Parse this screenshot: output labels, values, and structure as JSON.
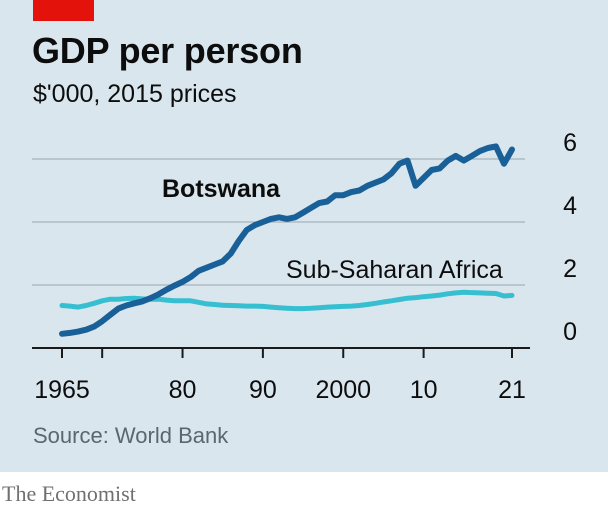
{
  "header": {
    "title": "GDP per person",
    "subtitle": "$'000, 2015 prices"
  },
  "footer": {
    "source": "Source: World Bank",
    "brand": "The Economist"
  },
  "colors": {
    "panel": "#d9e6ee",
    "tag": "#e3120b",
    "botswana": "#1a6098",
    "ssa": "#36bfd1",
    "grid": "#a9b4bb"
  },
  "chart_data": {
    "type": "line",
    "title": "GDP per person",
    "subtitle": "$'000, 2015 prices",
    "xlim": [
      1965,
      2021
    ],
    "ylim": [
      0,
      6
    ],
    "x_ticks": [
      1965,
      1970,
      1980,
      1990,
      2000,
      2010,
      2021
    ],
    "x_tick_labels": [
      "1965",
      "",
      "80",
      "90",
      "2000",
      "10",
      "21"
    ],
    "y_ticks": [
      0,
      2,
      4,
      6
    ],
    "y_tick_labels": [
      "0",
      "2",
      "4",
      "6"
    ],
    "grid": "horizontal",
    "x": [
      1965,
      1966,
      1967,
      1968,
      1969,
      1970,
      1971,
      1972,
      1973,
      1974,
      1975,
      1976,
      1977,
      1978,
      1979,
      1980,
      1981,
      1982,
      1983,
      1984,
      1985,
      1986,
      1987,
      1988,
      1989,
      1990,
      1991,
      1992,
      1993,
      1994,
      1995,
      1996,
      1997,
      1998,
      1999,
      2000,
      2001,
      2002,
      2003,
      2004,
      2005,
      2006,
      2007,
      2008,
      2009,
      2010,
      2011,
      2012,
      2013,
      2014,
      2015,
      2016,
      2017,
      2018,
      2019,
      2020,
      2021
    ],
    "series": [
      {
        "name": "Botswana",
        "values": [
          0.45,
          0.48,
          0.52,
          0.58,
          0.68,
          0.85,
          1.05,
          1.25,
          1.35,
          1.42,
          1.48,
          1.58,
          1.7,
          1.85,
          1.98,
          2.1,
          2.25,
          2.45,
          2.55,
          2.65,
          2.75,
          3.0,
          3.4,
          3.75,
          3.9,
          4.0,
          4.1,
          4.15,
          4.1,
          4.15,
          4.3,
          4.45,
          4.6,
          4.65,
          4.85,
          4.85,
          4.95,
          5.0,
          5.15,
          5.25,
          5.35,
          5.55,
          5.85,
          5.95,
          5.15,
          5.4,
          5.65,
          5.7,
          5.95,
          6.1,
          5.95,
          6.1,
          6.25,
          6.35,
          6.4,
          5.85,
          6.3
        ]
      },
      {
        "name": "Sub-Saharan Africa",
        "values": [
          1.35,
          1.33,
          1.3,
          1.35,
          1.42,
          1.5,
          1.55,
          1.55,
          1.57,
          1.58,
          1.56,
          1.55,
          1.55,
          1.52,
          1.5,
          1.5,
          1.5,
          1.45,
          1.4,
          1.38,
          1.36,
          1.35,
          1.34,
          1.33,
          1.33,
          1.32,
          1.3,
          1.28,
          1.26,
          1.25,
          1.25,
          1.26,
          1.28,
          1.3,
          1.31,
          1.32,
          1.33,
          1.35,
          1.38,
          1.42,
          1.46,
          1.5,
          1.54,
          1.58,
          1.6,
          1.63,
          1.65,
          1.68,
          1.72,
          1.75,
          1.77,
          1.76,
          1.75,
          1.74,
          1.73,
          1.65,
          1.67
        ]
      }
    ]
  }
}
